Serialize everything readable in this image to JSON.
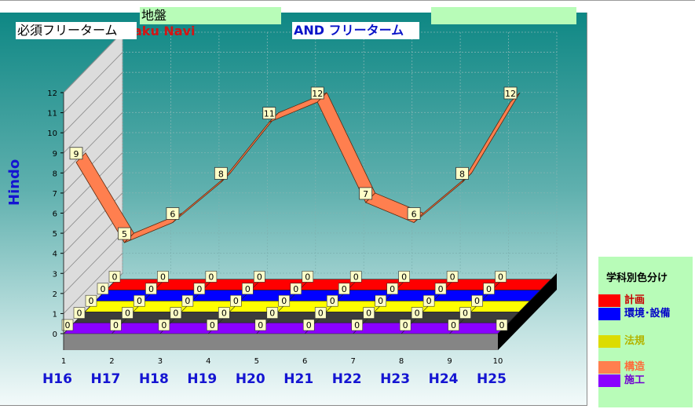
{
  "keywords": {
    "left": "必須フリーターム",
    "mid": "地盤",
    "right_and": "AND フリーターム"
  },
  "brand_fragment": "aku Navi",
  "legend": {
    "title": "学科別色分け",
    "items": [
      {
        "label": "計画",
        "color": "#ff0000",
        "text_color": "#c80000"
      },
      {
        "label": "環境･設備",
        "color": "#0000ff",
        "text_color": "#0000c8"
      },
      {
        "label": "法規",
        "color": "#dcdc00",
        "text_color": "#b4b400"
      },
      {
        "label": "構造",
        "color": "#ff7f4f",
        "text_color": "#ff6a3a"
      },
      {
        "label": "施工",
        "color": "#8a00ff",
        "text_color": "#7000d2"
      }
    ]
  },
  "chart_data": {
    "type": "line",
    "title": "",
    "ylabel": "Hindo",
    "xlabel": "",
    "ylim": [
      0,
      12
    ],
    "yticks": [
      "0",
      "1",
      "2",
      "3",
      "4",
      "5",
      "6",
      "7",
      "8",
      "9",
      "10",
      "11",
      "12"
    ],
    "x_index": [
      "1",
      "2",
      "3",
      "4",
      "5",
      "6",
      "7",
      "8",
      "9",
      "10"
    ],
    "categories": [
      "H16",
      "H17",
      "H18",
      "H19",
      "H20",
      "H21",
      "H22",
      "H23",
      "H24",
      "H25"
    ],
    "series": [
      {
        "name": "構造",
        "color": "#ff7f4f",
        "values": [
          9,
          5,
          6,
          8,
          11,
          12,
          7,
          6,
          8,
          12
        ]
      },
      {
        "name": "計画",
        "color": "#ff0000",
        "values": [
          0,
          0,
          0,
          0,
          0,
          0,
          0,
          0,
          0,
          0
        ]
      },
      {
        "name": "環境･設備",
        "color": "#0000ff",
        "values": [
          0,
          0,
          0,
          0,
          0,
          0,
          0,
          0,
          0,
          0
        ]
      },
      {
        "name": "法規",
        "color": "#ffff00",
        "values": [
          0,
          0,
          0,
          0,
          0,
          0,
          0,
          0,
          0,
          0
        ]
      },
      {
        "name": "施工",
        "color": "#8a00ff",
        "values": [
          0,
          0,
          0,
          0,
          0,
          0,
          0,
          0,
          0,
          0
        ]
      }
    ],
    "bottom_strip_values": [
      0,
      0,
      0,
      0,
      0,
      0,
      0,
      0,
      0,
      0
    ],
    "grid": true,
    "legend_position": "bottom-right"
  }
}
